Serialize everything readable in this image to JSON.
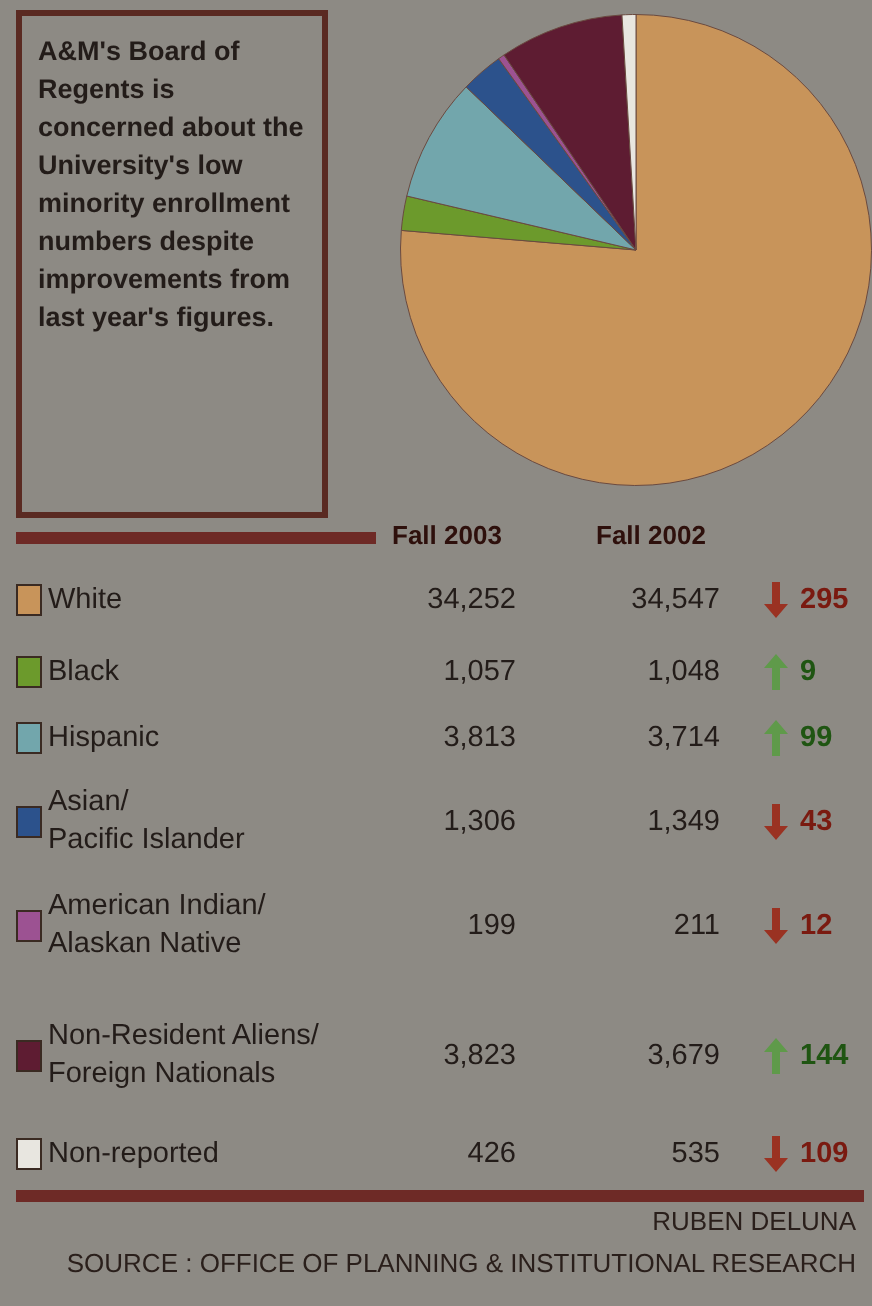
{
  "chart_data": {
    "type": "pie",
    "title": "A&M's Board of Regents is concerned about the University's low minority enrollment numbers despite improvements from last year's figures.",
    "categories": [
      "White",
      "Black",
      "Hispanic",
      "Asian/\nPacific Islander",
      "American Indian/\nAlaskan Native",
      "Non-Resident Aliens/\nForeign Nationals",
      "Non-reported"
    ],
    "colors": [
      "#c8945a",
      "#6c9a2c",
      "#72a6ac",
      "#2c528c",
      "#9c5292",
      "#5e1c32",
      "#e8e6e0"
    ],
    "values": [
      34252,
      1057,
      3813,
      1306,
      199,
      3823,
      426
    ],
    "value_labels": [
      "34,252",
      "1,057",
      "3,813",
      "1,306",
      "199",
      "3,823",
      "426"
    ],
    "legend_title": "Fall 2003",
    "legend": "bottom",
    "annotations": [
      "Fall 2002",
      {
        "text": "34,547",
        "x": "White"
      },
      {
        "text": "295",
        "x": "White"
      },
      {
        "text": "1,048",
        "x": "Black"
      },
      {
        "text": "9",
        "x": "Black"
      },
      {
        "text": "3,714",
        "x": "Hispanic"
      },
      {
        "text": "99",
        "x": "Hispanic"
      },
      {
        "text": "1,349",
        "x": "Asian/\nPacific Islander"
      },
      {
        "text": "43",
        "x": "Asian/\nPacific Islander"
      },
      {
        "text": "211",
        "x": "American Indian/\nAlaskan Native"
      },
      {
        "text": "12",
        "x": "American Indian/\nAlaskan Native"
      },
      {
        "text": "3,679",
        "x": "Non-Resident Aliens/\nForeign Nationals"
      },
      {
        "text": "144",
        "x": "Non-Resident Aliens/\nForeign Nationals"
      },
      {
        "text": "535",
        "x": "Non-reported"
      },
      {
        "text": "109",
        "x": "Non-reported"
      },
      "RUBEN DELUNA",
      "SOURCE : OFFICE OF PLANNING & INSTITUTIONAL RESEARCH"
    ]
  }
}
